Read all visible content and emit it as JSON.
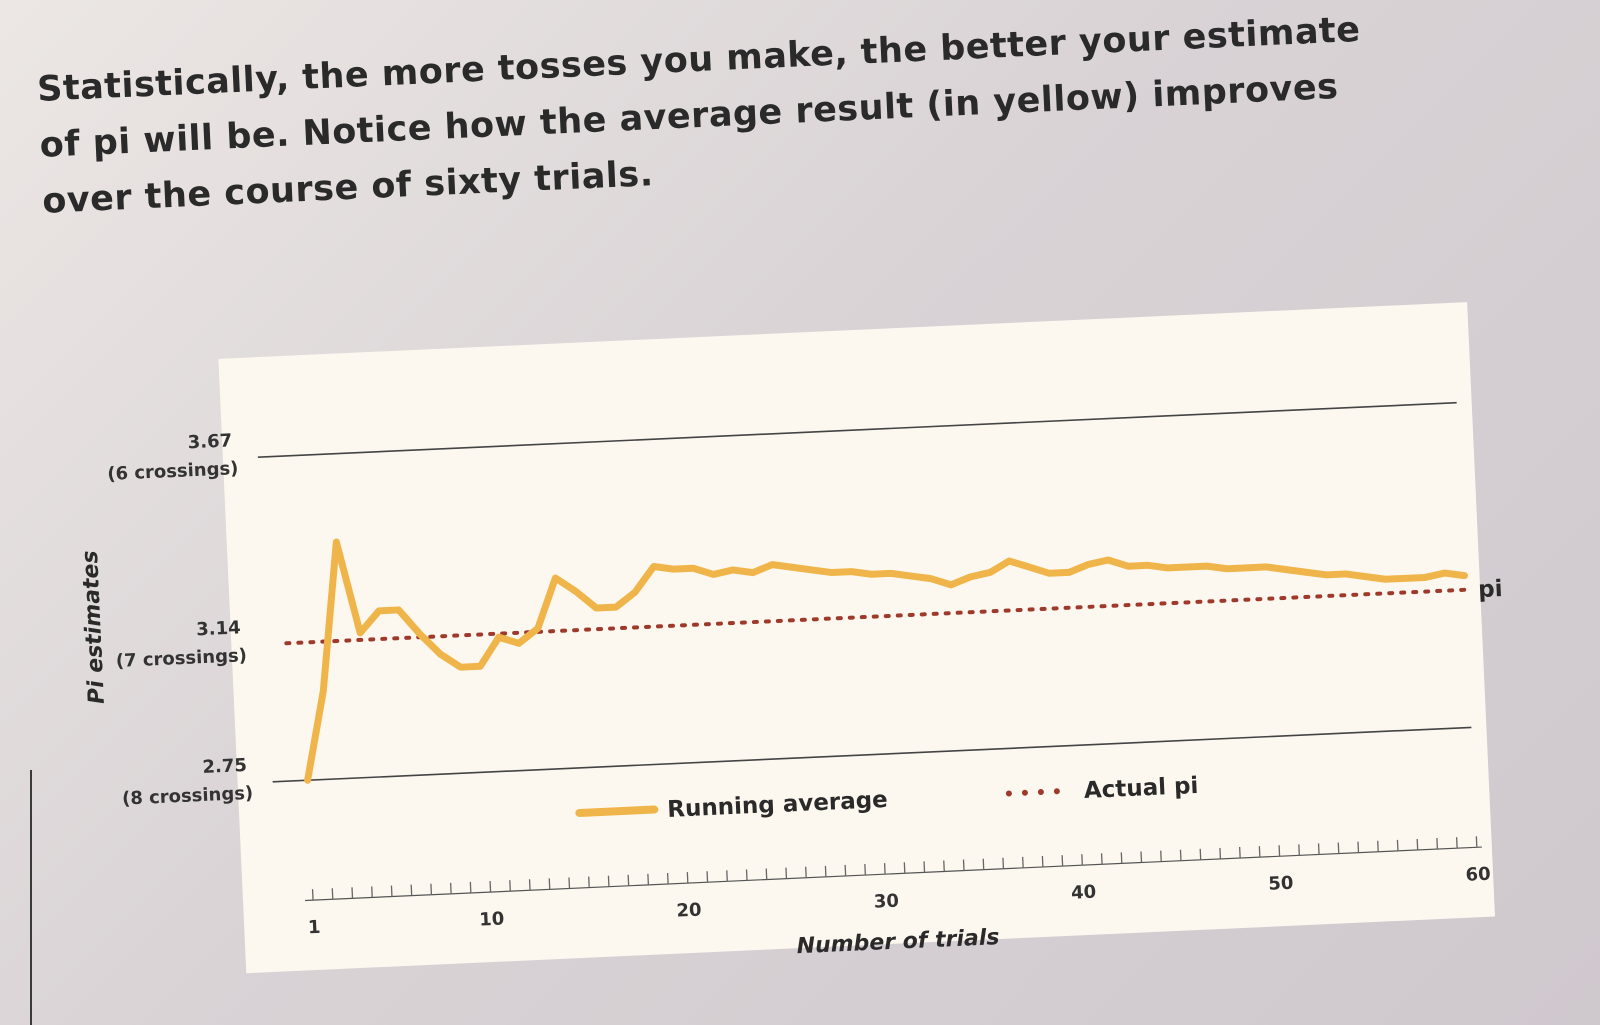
{
  "paragraph": "Statistically, the more tosses you make, the better your estimate of pi will be. Notice how the average result (in yellow) improves over the course of sixty trials.",
  "chart_data": {
    "type": "line",
    "xlabel": "Number of trials",
    "ylabel": "Pi estimates",
    "x_ticks": [
      "1",
      "10",
      "20",
      "30",
      "40",
      "50",
      "60"
    ],
    "xlim": [
      1,
      60
    ],
    "ylim": [
      2.75,
      3.67
    ],
    "reference_lines": [
      {
        "value": 3.67,
        "label": "3.67",
        "sublabel": "(6 crossings)"
      },
      {
        "value": 3.14,
        "label": "3.14",
        "sublabel": "(7 crossings)"
      },
      {
        "value": 2.75,
        "label": "2.75",
        "sublabel": "(8 crossings)"
      }
    ],
    "pi_label": "pi",
    "legend": {
      "running_average": "Running average",
      "actual_pi": "Actual pi"
    },
    "colors": {
      "running_average": "#f0b54a",
      "actual_pi": "#9e3a2c",
      "plot_bg": "#fdf8ef"
    },
    "series": [
      {
        "name": "Running average",
        "x": [
          1,
          2,
          3,
          4,
          5,
          6,
          7,
          8,
          9,
          10,
          11,
          12,
          13,
          14,
          15,
          16,
          17,
          18,
          19,
          20,
          21,
          22,
          23,
          24,
          25,
          26,
          27,
          28,
          29,
          30,
          31,
          32,
          33,
          34,
          35,
          36,
          37,
          38,
          39,
          40,
          41,
          42,
          43,
          44,
          45,
          46,
          47,
          48,
          49,
          50,
          51,
          52,
          53,
          54,
          55,
          56,
          57,
          58,
          59,
          60
        ],
        "values": [
          2.75,
          3.0,
          3.42,
          3.16,
          3.22,
          3.22,
          3.15,
          3.09,
          3.05,
          3.05,
          3.13,
          3.11,
          3.15,
          3.29,
          3.25,
          3.2,
          3.2,
          3.24,
          3.31,
          3.3,
          3.3,
          3.28,
          3.29,
          3.28,
          3.3,
          3.29,
          3.28,
          3.27,
          3.27,
          3.26,
          3.26,
          3.25,
          3.24,
          3.22,
          3.24,
          3.25,
          3.28,
          3.26,
          3.24,
          3.24,
          3.26,
          3.27,
          3.25,
          3.25,
          3.24,
          3.24,
          3.24,
          3.23,
          3.23,
          3.23,
          3.22,
          3.21,
          3.2,
          3.2,
          3.19,
          3.18,
          3.18,
          3.18,
          3.19,
          3.18
        ]
      },
      {
        "name": "Actual pi",
        "value": 3.14
      }
    ]
  }
}
